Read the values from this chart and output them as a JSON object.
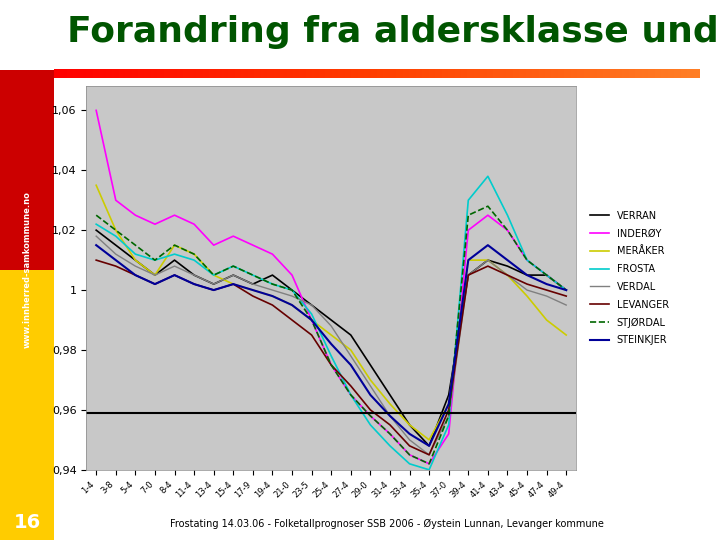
{
  "title": "Forandring fra aldersklasse under",
  "subtitle_footer": "Frostating 14.03.06 - Folketallprognoser SSB 2006 - Øystein Lunnan, Levanger kommune",
  "page_number": "16",
  "bg_color": "#c0c0c0",
  "plot_bg": "#c8c8c8",
  "ylim": [
    0.94,
    1.068
  ],
  "yticks": [
    0.94,
    0.96,
    0.98,
    1.0,
    1.02,
    1.04,
    1.06
  ],
  "ytick_labels": [
    "0,94",
    "0,96",
    "0,98",
    "1",
    "1,02",
    "1,04",
    "1,06"
  ],
  "hline_y": 0.959,
  "x_labels": [
    "1-4",
    "3-8",
    "5-4",
    "7-0",
    "8-4",
    "11-4",
    "13-4",
    "15-4",
    "17-9",
    "19-4",
    "21-0",
    "23-5",
    "25-4",
    "27-4",
    "29-0",
    "31-4",
    "33-4",
    "35-4",
    "37-0",
    "39-4",
    "41-4",
    "43-4",
    "45-4",
    "47-4",
    "49-4"
  ],
  "series": [
    {
      "name": "VERRAN",
      "color": "#000000",
      "linestyle": "solid",
      "linewidth": 1.2,
      "data": [
        1.02,
        1.015,
        1.01,
        1.005,
        1.01,
        1.005,
        1.002,
        1.005,
        1.002,
        1.005,
        1.0,
        0.995,
        0.99,
        0.985,
        0.975,
        0.965,
        0.955,
        0.948,
        0.965,
        1.005,
        1.01,
        1.008,
        1.005,
        1.005,
        1.0
      ]
    },
    {
      "name": "INDERØY",
      "color": "#ff00ff",
      "linestyle": "solid",
      "linewidth": 1.2,
      "data": [
        1.06,
        1.03,
        1.025,
        1.022,
        1.025,
        1.022,
        1.015,
        1.018,
        1.015,
        1.012,
        1.005,
        0.99,
        0.975,
        0.965,
        0.958,
        0.952,
        0.945,
        0.942,
        0.952,
        1.02,
        1.025,
        1.02,
        1.01,
        1.005,
        1.0
      ]
    },
    {
      "name": "MERÅKER",
      "color": "#cccc00",
      "linestyle": "solid",
      "linewidth": 1.2,
      "data": [
        1.035,
        1.02,
        1.01,
        1.005,
        1.015,
        1.012,
        1.005,
        1.002,
        1.0,
        0.998,
        0.995,
        0.99,
        0.985,
        0.98,
        0.97,
        0.962,
        0.955,
        0.95,
        0.962,
        1.01,
        1.01,
        1.005,
        0.998,
        0.99,
        0.985
      ]
    },
    {
      "name": "FROSTA",
      "color": "#00cccc",
      "linestyle": "solid",
      "linewidth": 1.2,
      "data": [
        1.022,
        1.018,
        1.012,
        1.01,
        1.012,
        1.01,
        1.005,
        1.008,
        1.005,
        1.002,
        1.0,
        0.992,
        0.978,
        0.965,
        0.955,
        0.948,
        0.942,
        0.94,
        0.955,
        1.03,
        1.038,
        1.025,
        1.01,
        1.005,
        1.0
      ]
    },
    {
      "name": "VERDAL",
      "color": "#808080",
      "linestyle": "solid",
      "linewidth": 1.0,
      "data": [
        1.018,
        1.012,
        1.008,
        1.005,
        1.008,
        1.005,
        1.002,
        1.005,
        1.002,
        1.0,
        0.998,
        0.995,
        0.988,
        0.978,
        0.968,
        0.958,
        0.95,
        0.945,
        0.958,
        1.005,
        1.01,
        1.005,
        1.0,
        0.998,
        0.995
      ]
    },
    {
      "name": "LEVANGER",
      "color": "#660000",
      "linestyle": "solid",
      "linewidth": 1.2,
      "data": [
        1.01,
        1.008,
        1.005,
        1.002,
        1.005,
        1.002,
        1.0,
        1.002,
        0.998,
        0.995,
        0.99,
        0.985,
        0.975,
        0.968,
        0.96,
        0.955,
        0.948,
        0.945,
        0.96,
        1.005,
        1.008,
        1.005,
        1.002,
        1.0,
        0.998
      ]
    },
    {
      "name": "STJØRDAL",
      "color": "#006600",
      "linestyle": "dashed",
      "linewidth": 1.2,
      "data": [
        1.025,
        1.02,
        1.015,
        1.01,
        1.015,
        1.012,
        1.005,
        1.008,
        1.005,
        1.002,
        1.0,
        0.99,
        0.975,
        0.965,
        0.958,
        0.952,
        0.945,
        0.942,
        0.958,
        1.025,
        1.028,
        1.02,
        1.01,
        1.005,
        1.0
      ]
    },
    {
      "name": "STEINKJER",
      "color": "#000099",
      "linestyle": "solid",
      "linewidth": 1.5,
      "data": [
        1.015,
        1.01,
        1.005,
        1.002,
        1.005,
        1.002,
        1.0,
        1.002,
        1.0,
        0.998,
        0.995,
        0.99,
        0.982,
        0.975,
        0.965,
        0.958,
        0.952,
        0.948,
        0.962,
        1.01,
        1.015,
        1.01,
        1.005,
        1.002,
        1.0
      ]
    }
  ]
}
